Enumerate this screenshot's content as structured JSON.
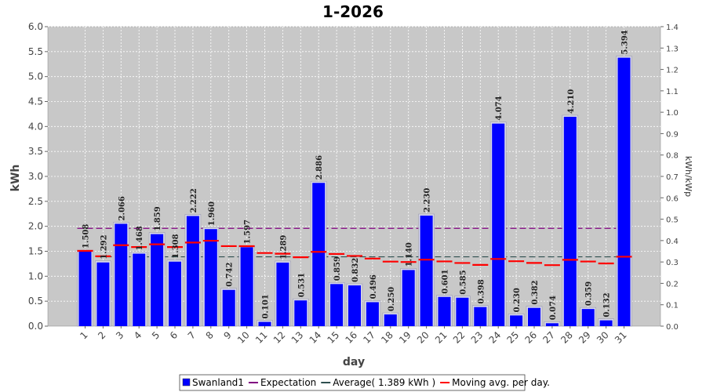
{
  "chart_data": {
    "type": "bar",
    "title": "1-2026",
    "xlabel": "day",
    "ylabel": "kWh",
    "ylabel_right": "kWh/kWp",
    "ylim": [
      0,
      6
    ],
    "ylim_right": [
      0,
      1.4
    ],
    "yticks": [
      "0.0",
      "0.5",
      "1.0",
      "1.5",
      "2.0",
      "2.5",
      "3.0",
      "3.5",
      "4.0",
      "4.5",
      "5.0",
      "5.5",
      "6.0"
    ],
    "yticks_right": [
      "0.0",
      "0.1",
      "0.2",
      "0.3",
      "0.4",
      "0.5",
      "0.6",
      "0.7",
      "0.8",
      "0.9",
      "1.0",
      "1.1",
      "1.2",
      "1.3",
      "1.4"
    ],
    "categories": [
      "1",
      "2",
      "3",
      "4",
      "5",
      "6",
      "7",
      "8",
      "9",
      "10",
      "11",
      "12",
      "13",
      "14",
      "15",
      "16",
      "17",
      "18",
      "19",
      "20",
      "21",
      "22",
      "23",
      "24",
      "25",
      "26",
      "27",
      "28",
      "29",
      "30",
      "31"
    ],
    "series": [
      {
        "name": "Swanland1",
        "values": [
          1.508,
          1.292,
          2.066,
          1.468,
          1.859,
          1.308,
          2.222,
          1.96,
          0.742,
          1.597,
          0.101,
          1.289,
          0.531,
          2.886,
          0.859,
          0.832,
          0.496,
          0.25,
          1.14,
          2.23,
          0.601,
          0.585,
          0.398,
          4.074,
          0.23,
          0.382,
          0.074,
          4.21,
          0.359,
          0.132,
          5.394
        ],
        "labels": [
          "1.508",
          "1.292",
          "2.066",
          "1.468",
          "1.859",
          "1.308",
          "2.222",
          "1.960",
          "0.742",
          "1.597",
          "0.101",
          "1.289",
          "0.531",
          "2.886",
          "0.859",
          "0.832",
          "0.496",
          "0.250",
          "1.140",
          "2.230",
          "0.601",
          "0.585",
          "0.398",
          "4.074",
          "0.230",
          "0.382",
          "0.074",
          "4.210",
          "0.359",
          "0.132",
          "5.394"
        ],
        "color": "#0000ff"
      },
      {
        "name": "Expectation",
        "value": 1.96,
        "color": "#800080"
      },
      {
        "name": "Average( 1.389 kWh )",
        "value": 1.389,
        "color": "#2f4f4f"
      },
      {
        "name": "Moving avg. per day.",
        "values": [
          1.508,
          1.4,
          1.622,
          1.584,
          1.639,
          1.584,
          1.675,
          1.711,
          1.603,
          1.602,
          1.466,
          1.451,
          1.38,
          1.488,
          1.446,
          1.407,
          1.354,
          1.293,
          1.285,
          1.332,
          1.297,
          1.265,
          1.227,
          1.346,
          1.301,
          1.266,
          1.222,
          1.329,
          1.295,
          1.257,
          1.391
        ],
        "color": "#ff0000"
      }
    ],
    "grid": true,
    "legend": "bottom",
    "plot_background": "#c8c8c8"
  }
}
